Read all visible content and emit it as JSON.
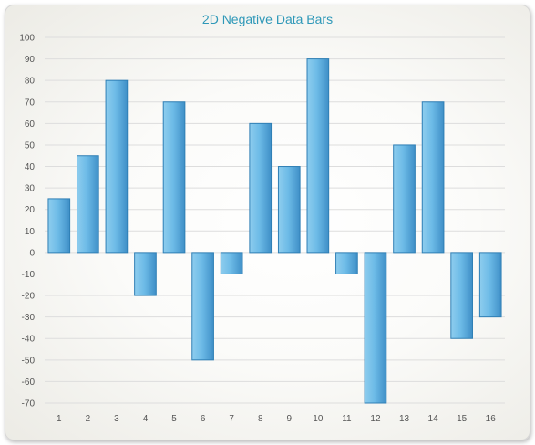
{
  "chart_data": {
    "type": "bar",
    "title": "2D Negative Data Bars",
    "xlabel": "",
    "ylabel": "",
    "categories": [
      "1",
      "2",
      "3",
      "4",
      "5",
      "6",
      "7",
      "8",
      "9",
      "10",
      "11",
      "12",
      "13",
      "14",
      "15",
      "16"
    ],
    "values": [
      25,
      45,
      80,
      -20,
      70,
      -50,
      -10,
      60,
      40,
      90,
      -10,
      -70,
      50,
      70,
      -40,
      -30
    ],
    "ylim": [
      -70,
      100
    ],
    "yticks": [
      100,
      90,
      80,
      70,
      60,
      50,
      40,
      30,
      20,
      10,
      0,
      -10,
      -20,
      -30,
      -40,
      -50,
      -60,
      -70
    ],
    "grid": true,
    "legend": "none",
    "colors": {
      "bar_light": "#8ecdee",
      "bar_mid": "#5fb1e1",
      "bar_dark": "#3f8fc7",
      "bar_border": "#2f7fb5",
      "grid": "#dddddd",
      "title": "#2e98b8"
    }
  }
}
